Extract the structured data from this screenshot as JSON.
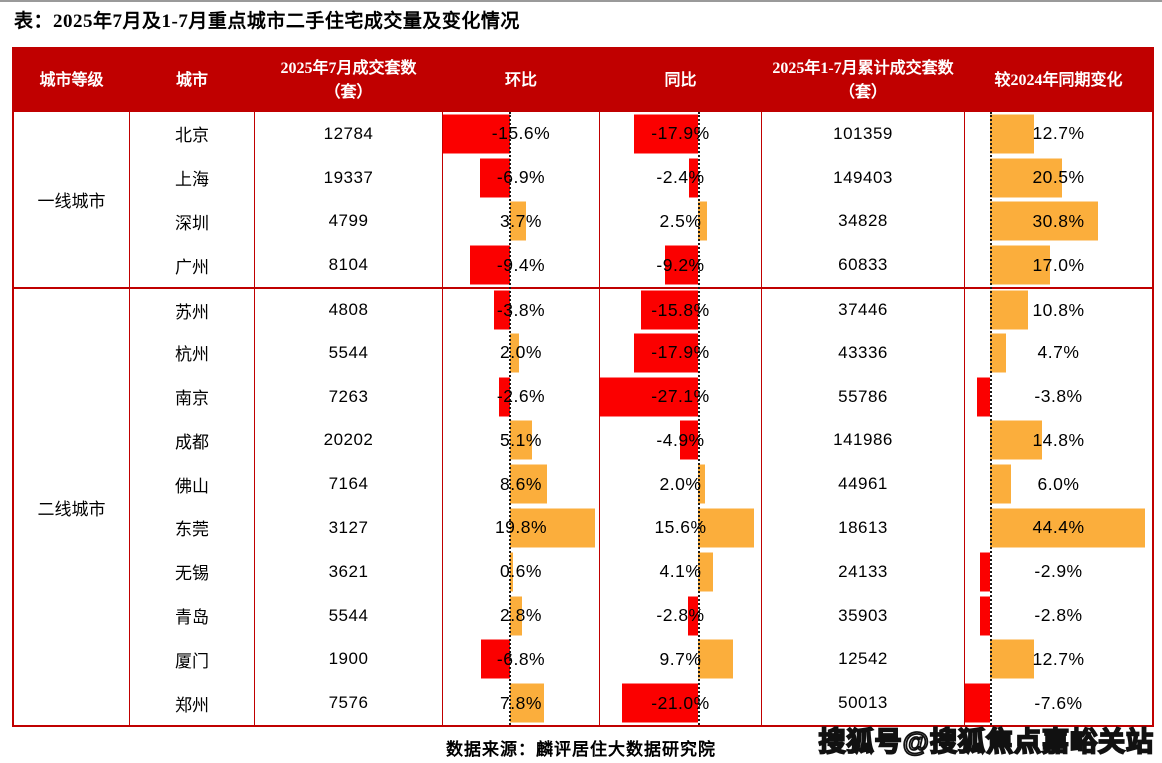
{
  "title": "表：2025年7月及1-7月重点城市二手住宅成交量及变化情况",
  "source": "数据来源：麟评居住大数据研究院",
  "watermark": "搜狐号@搜狐焦点嘉峪关站",
  "colors": {
    "header_bg": "#c00000",
    "table_border": "#c00000",
    "bar_negative": "#fb0000",
    "bar_positive": "#fbae3c"
  },
  "table": {
    "headers": [
      "城市等级",
      "城市",
      "2025年7月成交套数（套）",
      "环比",
      "同比",
      "2025年1-7月累计成交套数（套）",
      "较2024年同期变化"
    ],
    "groups": [
      {
        "label": "一线城市",
        "cities": [
          {
            "name": "北京",
            "july": "12784",
            "mom": -15.6,
            "yoy": -17.9,
            "cum": "101359",
            "vs2024": 12.7
          },
          {
            "name": "上海",
            "july": "19337",
            "mom": -6.9,
            "yoy": -2.4,
            "cum": "149403",
            "vs2024": 20.5
          },
          {
            "name": "深圳",
            "july": "4799",
            "mom": 3.7,
            "yoy": 2.5,
            "cum": "34828",
            "vs2024": 30.8
          },
          {
            "name": "广州",
            "july": "8104",
            "mom": -9.4,
            "yoy": -9.2,
            "cum": "60833",
            "vs2024": 17.0
          }
        ]
      },
      {
        "label": "二线城市",
        "cities": [
          {
            "name": "苏州",
            "july": "4808",
            "mom": -3.8,
            "yoy": -15.8,
            "cum": "37446",
            "vs2024": 10.8
          },
          {
            "name": "杭州",
            "july": "5544",
            "mom": 2.0,
            "yoy": -17.9,
            "cum": "43336",
            "vs2024": 4.7
          },
          {
            "name": "南京",
            "july": "7263",
            "mom": -2.6,
            "yoy": -27.1,
            "cum": "55786",
            "vs2024": -3.8
          },
          {
            "name": "成都",
            "july": "20202",
            "mom": 5.1,
            "yoy": -4.9,
            "cum": "141986",
            "vs2024": 14.8
          },
          {
            "name": "佛山",
            "july": "7164",
            "mom": 8.6,
            "yoy": 2.0,
            "cum": "44961",
            "vs2024": 6.0
          },
          {
            "name": "东莞",
            "july": "3127",
            "mom": 19.8,
            "yoy": 15.6,
            "cum": "18613",
            "vs2024": 44.4
          },
          {
            "name": "无锡",
            "july": "3621",
            "mom": 0.6,
            "yoy": 4.1,
            "cum": "24133",
            "vs2024": -2.9
          },
          {
            "name": "青岛",
            "july": "5544",
            "mom": 2.8,
            "yoy": -2.8,
            "cum": "35903",
            "vs2024": -2.8
          },
          {
            "name": "厦门",
            "july": "1900",
            "mom": -6.8,
            "yoy": 9.7,
            "cum": "12542",
            "vs2024": 12.7
          },
          {
            "name": "郑州",
            "july": "7576",
            "mom": 7.8,
            "yoy": -21.0,
            "cum": "50013",
            "vs2024": -7.6
          }
        ]
      }
    ]
  },
  "chart_data": {
    "type": "table",
    "title": "表：2025年7月及1-7月重点城市二手住宅成交量及变化情况",
    "columns": [
      "城市等级",
      "城市",
      "2025年7月成交套数（套）",
      "环比",
      "同比",
      "2025年1-7月累计成交套数（套）",
      "较2024年同期变化"
    ],
    "rows": [
      [
        "一线城市",
        "北京",
        12784,
        "-15.6%",
        "-17.9%",
        101359,
        "12.7%"
      ],
      [
        "一线城市",
        "上海",
        19337,
        "-6.9%",
        "-2.4%",
        149403,
        "20.5%"
      ],
      [
        "一线城市",
        "深圳",
        4799,
        "3.7%",
        "2.5%",
        34828,
        "30.8%"
      ],
      [
        "一线城市",
        "广州",
        8104,
        "-9.4%",
        "-9.2%",
        60833,
        "17.0%"
      ],
      [
        "二线城市",
        "苏州",
        4808,
        "-3.8%",
        "-15.8%",
        37446,
        "10.8%"
      ],
      [
        "二线城市",
        "杭州",
        5544,
        "2.0%",
        "-17.9%",
        43336,
        "4.7%"
      ],
      [
        "二线城市",
        "南京",
        7263,
        "-2.6%",
        "-27.1%",
        55786,
        "-3.8%"
      ],
      [
        "二线城市",
        "成都",
        20202,
        "5.1%",
        "-4.9%",
        141986,
        "14.8%"
      ],
      [
        "二线城市",
        "佛山",
        7164,
        "8.6%",
        "2.0%",
        44961,
        "6.0%"
      ],
      [
        "二线城市",
        "东莞",
        3127,
        "19.8%",
        "15.6%",
        18613,
        "44.4%"
      ],
      [
        "二线城市",
        "无锡",
        3621,
        "0.6%",
        "4.1%",
        24133,
        "-2.9%"
      ],
      [
        "二线城市",
        "青岛",
        5544,
        "2.8%",
        "-2.8%",
        35903,
        "-2.8%"
      ],
      [
        "二线城市",
        "厦门",
        1900,
        "-6.8%",
        "9.7%",
        12542,
        "12.7%"
      ],
      [
        "二线城市",
        "郑州",
        7576,
        "7.8%",
        "-21.0%",
        50013,
        "-7.6%"
      ]
    ],
    "embedded_bars": {
      "columns_with_bars": [
        "环比",
        "同比",
        "较2024年同期变化"
      ],
      "negative_color": "#fb0000",
      "positive_color": "#fbae3c",
      "axis_style": "vertical dotted zero-line per column, bars left=negative / right=positive"
    },
    "source_note": "数据来源：麟评居住大数据研究院"
  }
}
